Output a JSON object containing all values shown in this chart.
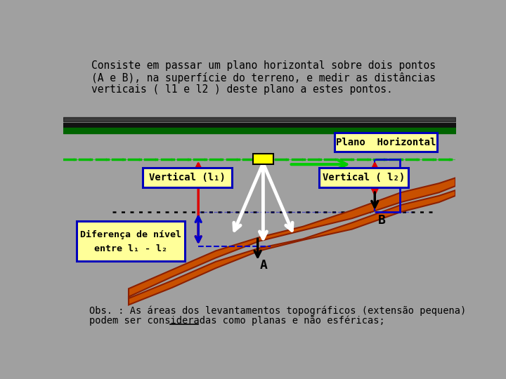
{
  "bg_color": "#a0a0a0",
  "title_lines": [
    "Consiste em passar um plano horizontal sobre dois pontos",
    "(A e B), na superfície do terreno, e medir as distâncias",
    "verticais ( l1 e l2 ) deste plano a estes pontos."
  ],
  "obs_line1": "Obs. : As áreas dos levantamentos topográficos (extensão pequena)",
  "obs_line2": "podem ser consideradas como planas e não esféricas;",
  "obs_underline_word": "planas",
  "plano_horizontal_label": "Plano  Horizontal",
  "vertical_l1_label": "Vertical (l₁)",
  "vertical_l2_label": "Vertical ( l₂)",
  "diferenca_label1": "Diferença de nível",
  "diferenca_label2": "entre l₁ - l₂",
  "point_A_label": "A",
  "point_B_label": "B",
  "font_family": "monospace",
  "green_band_color": "#006400",
  "black_band_color": "#111111",
  "dash_line_color": "#00bb00",
  "terrain_face_color": "#c85000",
  "terrain_edge_color": "#8b2000",
  "red_arrow_color": "#dd0000",
  "blue_color": "#0000cc",
  "white_color": "#ffffff",
  "green_arrow_color": "#00cc00",
  "yellow_box_color": "#ffff99",
  "box_edge_color": "#0000bb"
}
